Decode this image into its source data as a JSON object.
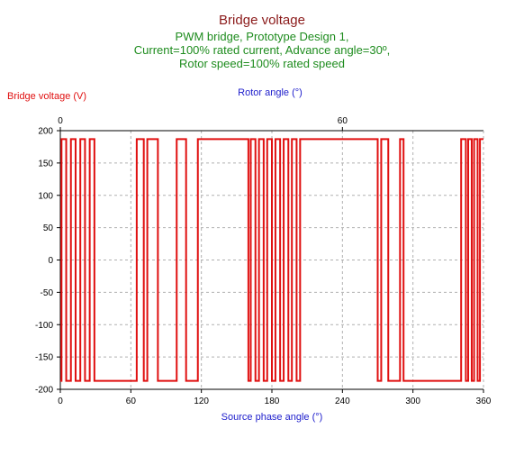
{
  "chart_data": {
    "type": "line",
    "title": "Bridge voltage",
    "subtitle": [
      "PWM bridge, Prototype Design 1,",
      "Current=100% rated current, Advance angle=30º,",
      "Rotor speed=100% rated speed"
    ],
    "xlabel": "Source phase angle (°)",
    "x2label": "Rotor angle (°)",
    "ylabel": "Bridge voltage (V)",
    "xlim": [
      0,
      360
    ],
    "ylim": [
      -200,
      200
    ],
    "x2lim": [
      0,
      90
    ],
    "xticks": [
      0,
      60,
      120,
      180,
      240,
      300,
      360
    ],
    "x2ticks": [
      0,
      60
    ],
    "yticks": [
      200,
      150,
      100,
      50,
      0,
      -50,
      -100,
      -150,
      -200
    ],
    "grid": true,
    "colors": {
      "series": "#e01010",
      "title": "#8b1a1a",
      "subtitle": "#1e8c1e",
      "x_axis_label": "#2020cc",
      "y_axis_label": "#e01010",
      "grid": "#b0b0b0"
    },
    "series": [
      {
        "high": 187,
        "low": -187,
        "high_intervals": [
          [
            1,
            5
          ],
          [
            9,
            13
          ],
          [
            17,
            21
          ],
          [
            25,
            29
          ],
          [
            65,
            71
          ],
          [
            74,
            83
          ],
          [
            99,
            107
          ],
          [
            117,
            160
          ],
          [
            162,
            166
          ],
          [
            169,
            173
          ],
          [
            176,
            180
          ],
          [
            183,
            187
          ],
          [
            190,
            194
          ],
          [
            197,
            201
          ],
          [
            204,
            270
          ],
          [
            273,
            279
          ],
          [
            289,
            292
          ],
          [
            341,
            345
          ],
          [
            347,
            350
          ],
          [
            352,
            355
          ],
          [
            357,
            360
          ]
        ]
      }
    ]
  }
}
